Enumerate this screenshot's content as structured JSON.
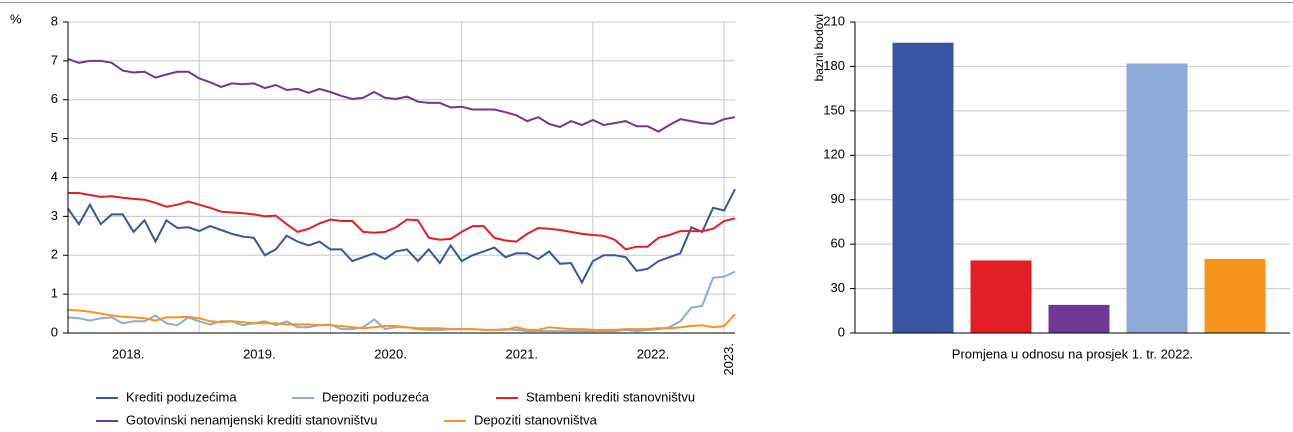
{
  "chart_data": [
    {
      "type": "line",
      "y_label": "%",
      "categories": [
        null,
        null,
        null,
        null,
        null,
        null,
        "2018.",
        null,
        null,
        null,
        null,
        null,
        null,
        null,
        null,
        null,
        null,
        null,
        "2019.",
        null,
        null,
        null,
        null,
        null,
        null,
        null,
        null,
        null,
        null,
        null,
        "2020.",
        null,
        null,
        null,
        null,
        null,
        null,
        null,
        null,
        null,
        null,
        null,
        "2021.",
        null,
        null,
        null,
        null,
        null,
        null,
        null,
        null,
        null,
        null,
        null,
        "2022.",
        null,
        null,
        null,
        null,
        null,
        null,
        "2023."
      ],
      "ylim": [
        0,
        8
      ],
      "yticks": [
        0,
        1,
        2,
        3,
        4,
        5,
        6,
        7,
        8
      ],
      "grid": true,
      "series": [
        {
          "name": "Krediti poduzećima",
          "color": "#3a54a4",
          "values": [
            3.2,
            2.8,
            3.3,
            2.8,
            3.05,
            3.05,
            2.6,
            2.9,
            2.35,
            2.9,
            2.7,
            2.72,
            2.62,
            2.75,
            2.65,
            2.55,
            2.48,
            2.45,
            2.0,
            2.15,
            2.5,
            2.35,
            2.25,
            2.35,
            2.15,
            2.15,
            1.85,
            1.95,
            2.05,
            1.9,
            2.1,
            2.15,
            1.85,
            2.15,
            1.8,
            2.25,
            1.85,
            2.0,
            2.1,
            2.2,
            1.95,
            2.05,
            2.05,
            1.9,
            2.1,
            1.78,
            1.8,
            1.3,
            1.85,
            2.0,
            2.0,
            1.95,
            1.6,
            1.65,
            1.85,
            1.95,
            2.05,
            2.72,
            2.6,
            3.22,
            3.15,
            3.7
          ]
        },
        {
          "name": "Depoziti poduzeća",
          "color": "#8faad8",
          "values": [
            0.4,
            0.38,
            0.32,
            0.38,
            0.4,
            0.25,
            0.3,
            0.3,
            0.45,
            0.25,
            0.2,
            0.4,
            0.3,
            0.22,
            0.3,
            0.3,
            0.2,
            0.25,
            0.3,
            0.2,
            0.3,
            0.15,
            0.15,
            0.2,
            0.22,
            0.1,
            0.1,
            0.15,
            0.35,
            0.1,
            0.15,
            0.15,
            0.1,
            0.08,
            0.08,
            0.1,
            0.1,
            0.1,
            0.08,
            0.08,
            0.1,
            0.08,
            0.05,
            0.05,
            0.05,
            0.05,
            0.05,
            0.05,
            0.05,
            0.05,
            0.05,
            0.08,
            0.05,
            0.08,
            0.1,
            0.15,
            0.3,
            0.65,
            0.7,
            1.42,
            1.45,
            1.58
          ]
        },
        {
          "name": "Stambeni krediti stanovništvu",
          "color": "#e31e24",
          "values": [
            3.6,
            3.6,
            3.55,
            3.5,
            3.52,
            3.48,
            3.45,
            3.43,
            3.35,
            3.25,
            3.3,
            3.38,
            3.3,
            3.22,
            3.12,
            3.1,
            3.08,
            3.05,
            3.0,
            3.02,
            2.8,
            2.6,
            2.68,
            2.82,
            2.92,
            2.88,
            2.88,
            2.6,
            2.58,
            2.6,
            2.72,
            2.92,
            2.9,
            2.45,
            2.4,
            2.42,
            2.6,
            2.75,
            2.75,
            2.45,
            2.38,
            2.35,
            2.55,
            2.7,
            2.68,
            2.65,
            2.6,
            2.55,
            2.52,
            2.5,
            2.4,
            2.15,
            2.22,
            2.22,
            2.45,
            2.52,
            2.62,
            2.62,
            2.62,
            2.68,
            2.88,
            2.95
          ]
        },
        {
          "name": "Gotovinski nenamjenski krediti stanovništvu",
          "color": "#6f3896",
          "values": [
            7.05,
            6.95,
            7.0,
            7.0,
            6.95,
            6.75,
            6.7,
            6.72,
            6.57,
            6.65,
            6.72,
            6.72,
            6.55,
            6.45,
            6.33,
            6.42,
            6.4,
            6.42,
            6.3,
            6.38,
            6.25,
            6.28,
            6.18,
            6.28,
            6.2,
            6.1,
            6.02,
            6.05,
            6.2,
            6.05,
            6.02,
            6.08,
            5.95,
            5.92,
            5.92,
            5.8,
            5.82,
            5.75,
            5.75,
            5.75,
            5.68,
            5.6,
            5.45,
            5.55,
            5.38,
            5.3,
            5.45,
            5.35,
            5.48,
            5.35,
            5.4,
            5.45,
            5.32,
            5.32,
            5.18,
            5.35,
            5.5,
            5.45,
            5.4,
            5.38,
            5.5,
            5.55
          ]
        },
        {
          "name": "Depoziti stanovništva",
          "color": "#f7941d",
          "values": [
            0.6,
            0.58,
            0.55,
            0.5,
            0.45,
            0.42,
            0.4,
            0.38,
            0.32,
            0.4,
            0.4,
            0.42,
            0.38,
            0.3,
            0.28,
            0.3,
            0.28,
            0.25,
            0.25,
            0.25,
            0.22,
            0.22,
            0.22,
            0.2,
            0.2,
            0.18,
            0.15,
            0.12,
            0.15,
            0.18,
            0.18,
            0.15,
            0.12,
            0.12,
            0.12,
            0.1,
            0.1,
            0.1,
            0.08,
            0.08,
            0.08,
            0.15,
            0.08,
            0.08,
            0.15,
            0.12,
            0.1,
            0.1,
            0.08,
            0.08,
            0.08,
            0.1,
            0.1,
            0.1,
            0.12,
            0.12,
            0.15,
            0.18,
            0.2,
            0.15,
            0.18,
            0.48
          ]
        }
      ]
    },
    {
      "type": "bar",
      "y_label": "bazni bodovi",
      "x_label": "Promjena u odnosu na prosjek 1. tr. 2022.",
      "categories": [
        null,
        null,
        null,
        null,
        null
      ],
      "values": [
        196,
        49,
        19,
        182,
        50
      ],
      "colors": [
        "#3a54a4",
        "#e31e24",
        "#6f3896",
        "#8faad8",
        "#f7941d"
      ],
      "ylim": [
        0,
        210
      ],
      "yticks": [
        0,
        30,
        60,
        90,
        120,
        150,
        180,
        210
      ],
      "grid": true
    }
  ]
}
